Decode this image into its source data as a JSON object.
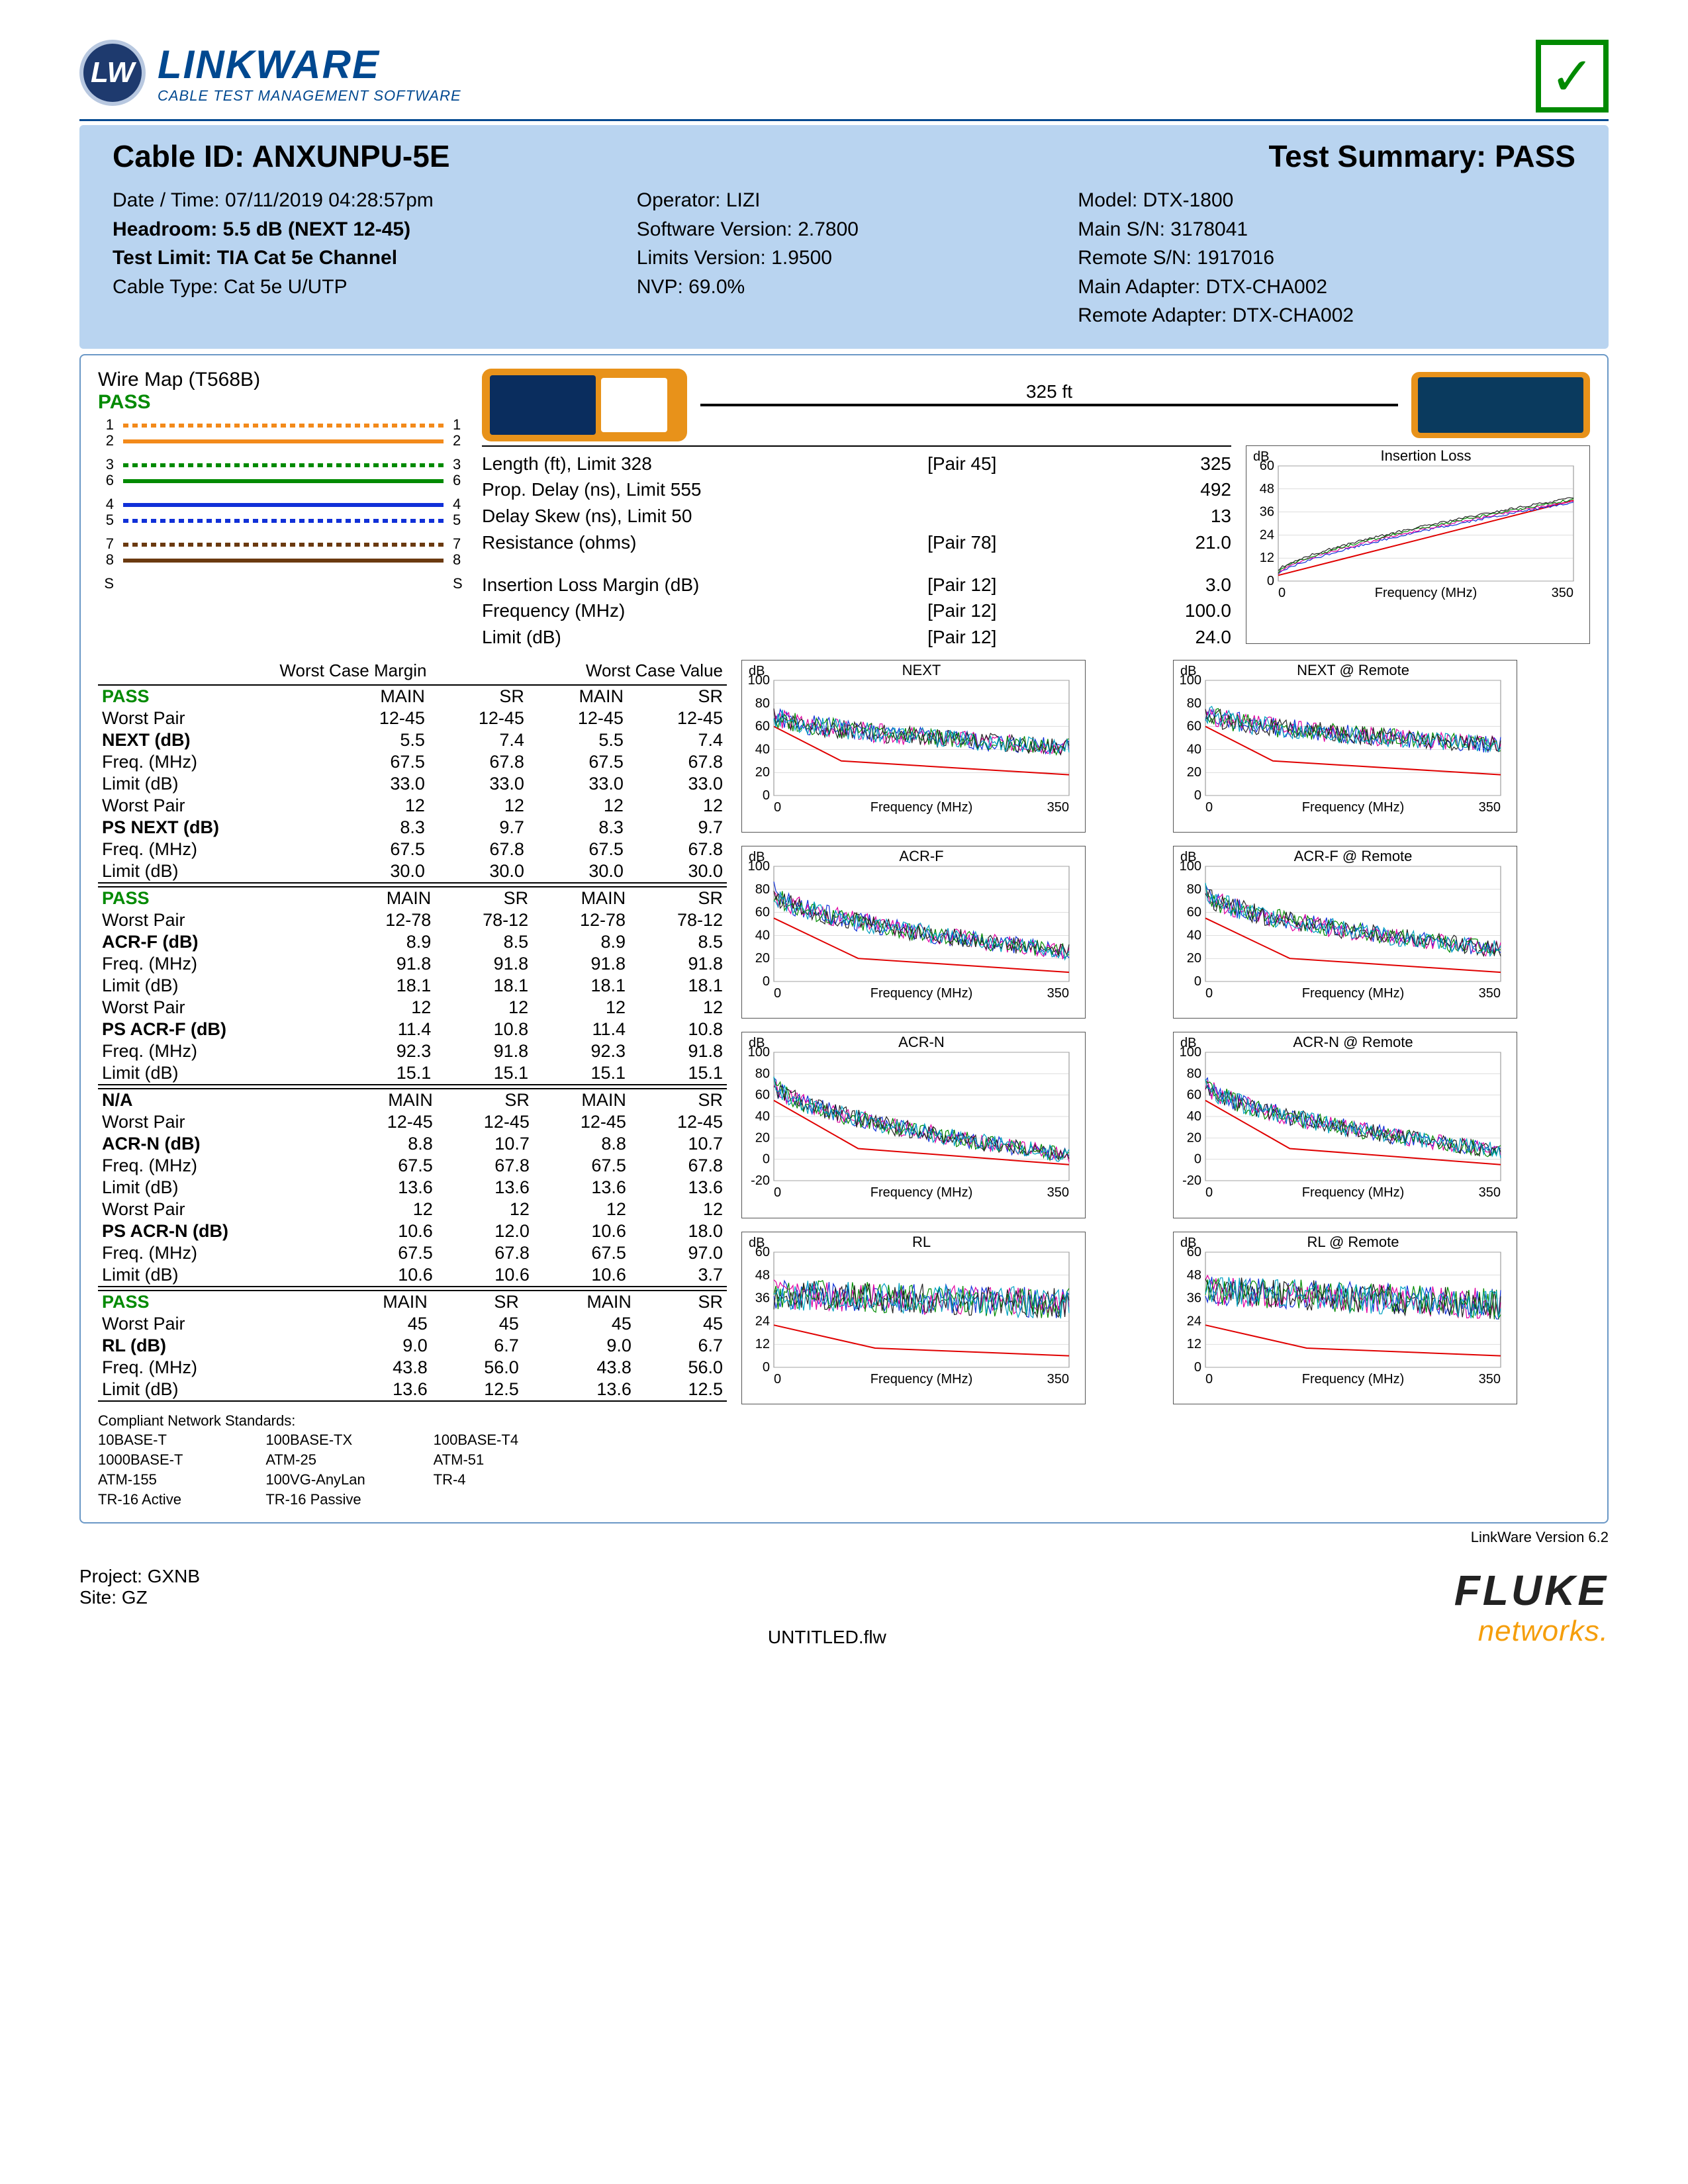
{
  "logo": {
    "badge": "LW",
    "title": "LINKWARE",
    "subtitle": "CABLE TEST MANAGEMENT SOFTWARE"
  },
  "pass_mark": "✓",
  "header": {
    "cable_id_label": "Cable ID:",
    "cable_id": "ANXUNPU-5E",
    "summary_label": "Test Summary:",
    "summary": "PASS",
    "col1": {
      "datetime": "Date / Time: 07/11/2019 04:28:57pm",
      "headroom": "Headroom: 5.5 dB (NEXT 12-45)",
      "test_limit": "Test Limit: TIA Cat 5e Channel",
      "cable_type": "Cable Type: Cat 5e U/UTP"
    },
    "col2": {
      "operator": "Operator: LIZI",
      "sw_ver": "Software Version: 2.7800",
      "lim_ver": "Limits Version: 1.9500",
      "nvp": "NVP: 69.0%"
    },
    "col3": {
      "model": "Model: DTX-1800",
      "main_sn": "Main S/N: 3178041",
      "remote_sn": "Remote S/N: 1917016",
      "main_ad": "Main Adapter: DTX-CHA002",
      "rem_ad": "Remote Adapter: DTX-CHA002"
    }
  },
  "wiremap": {
    "title": "Wire Map (T568B)",
    "status": "PASS",
    "pins_left": [
      "1",
      "2",
      "3",
      "6",
      "4",
      "5",
      "7",
      "8",
      "S"
    ],
    "pins_right": [
      "1",
      "2",
      "3",
      "6",
      "4",
      "5",
      "7",
      "8",
      "S"
    ],
    "pairs": [
      {
        "top": {
          "color": "#f38a1a",
          "dash": "8,6"
        },
        "bot": {
          "color": "#f38a1a",
          "dash": "none"
        }
      },
      {
        "top": {
          "color": "#008a00",
          "dash": "8,6"
        },
        "bot": {
          "color": "#008a00",
          "dash": "none"
        }
      },
      {
        "top": {
          "color": "#1030d8",
          "dash": "none"
        },
        "bot": {
          "color": "#1030d8",
          "dash": "8,6"
        }
      },
      {
        "top": {
          "color": "#6b3a10",
          "dash": "8,6"
        },
        "bot": {
          "color": "#6b3a10",
          "dash": "none"
        }
      }
    ]
  },
  "cable_len": "325 ft",
  "params": [
    {
      "k": "Length (ft), Limit 328",
      "pair": "[Pair 45]",
      "v": "325"
    },
    {
      "k": "Prop. Delay (ns), Limit 555",
      "pair": "",
      "v": "492"
    },
    {
      "k": "Delay Skew (ns), Limit 50",
      "pair": "",
      "v": "13"
    },
    {
      "k": "Resistance (ohms)",
      "pair": "[Pair 78]",
      "v": "21.0"
    }
  ],
  "params2": [
    {
      "k": "Insertion Loss Margin (dB)",
      "pair": "[Pair 12]",
      "v": "3.0"
    },
    {
      "k": "Frequency (MHz)",
      "pair": "[Pair 12]",
      "v": "100.0"
    },
    {
      "k": "Limit (dB)",
      "pair": "[Pair 12]",
      "v": "24.0"
    }
  ],
  "tables_top_head": {
    "wcm": "Worst Case Margin",
    "wcv": "Worst Case Value"
  },
  "col_heads": [
    "MAIN",
    "SR",
    "MAIN",
    "SR"
  ],
  "sections": [
    {
      "status": "PASS",
      "status_color": "#008a00",
      "rows": [
        [
          "Worst Pair",
          "12-45",
          "12-45",
          "12-45",
          "12-45"
        ],
        [
          "NEXT (dB)",
          "5.5",
          "7.4",
          "5.5",
          "7.4"
        ],
        [
          "Freq. (MHz)",
          "67.5",
          "67.8",
          "67.5",
          "67.8"
        ],
        [
          "Limit (dB)",
          "33.0",
          "33.0",
          "33.0",
          "33.0"
        ],
        [
          "Worst Pair",
          "12",
          "12",
          "12",
          "12"
        ],
        [
          "PS NEXT (dB)",
          "8.3",
          "9.7",
          "8.3",
          "9.7"
        ],
        [
          "Freq. (MHz)",
          "67.5",
          "67.8",
          "67.5",
          "67.8"
        ],
        [
          "Limit (dB)",
          "30.0",
          "30.0",
          "30.0",
          "30.0"
        ]
      ],
      "bold_rows": [
        1,
        5
      ]
    },
    {
      "status": "PASS",
      "status_color": "#008a00",
      "rows": [
        [
          "Worst Pair",
          "12-78",
          "78-12",
          "12-78",
          "78-12"
        ],
        [
          "ACR-F (dB)",
          "8.9",
          "8.5",
          "8.9",
          "8.5"
        ],
        [
          "Freq. (MHz)",
          "91.8",
          "91.8",
          "91.8",
          "91.8"
        ],
        [
          "Limit (dB)",
          "18.1",
          "18.1",
          "18.1",
          "18.1"
        ],
        [
          "Worst Pair",
          "12",
          "12",
          "12",
          "12"
        ],
        [
          "PS ACR-F (dB)",
          "11.4",
          "10.8",
          "11.4",
          "10.8"
        ],
        [
          "Freq. (MHz)",
          "92.3",
          "91.8",
          "92.3",
          "91.8"
        ],
        [
          "Limit (dB)",
          "15.1",
          "15.1",
          "15.1",
          "15.1"
        ]
      ],
      "bold_rows": [
        1,
        5
      ]
    },
    {
      "status": "N/A",
      "status_color": "#000",
      "rows": [
        [
          "Worst Pair",
          "12-45",
          "12-45",
          "12-45",
          "12-45"
        ],
        [
          "ACR-N (dB)",
          "8.8",
          "10.7",
          "8.8",
          "10.7"
        ],
        [
          "Freq. (MHz)",
          "67.5",
          "67.8",
          "67.5",
          "67.8"
        ],
        [
          "Limit (dB)",
          "13.6",
          "13.6",
          "13.6",
          "13.6"
        ],
        [
          "Worst Pair",
          "12",
          "12",
          "12",
          "12"
        ],
        [
          "PS ACR-N (dB)",
          "10.6",
          "12.0",
          "10.6",
          "18.0"
        ],
        [
          "Freq. (MHz)",
          "67.5",
          "67.8",
          "67.5",
          "97.0"
        ],
        [
          "Limit (dB)",
          "10.6",
          "10.6",
          "10.6",
          "3.7"
        ]
      ],
      "bold_rows": [
        1,
        5
      ]
    },
    {
      "status": "PASS",
      "status_color": "#008a00",
      "rows": [
        [
          "Worst Pair",
          "45",
          "45",
          "45",
          "45"
        ],
        [
          "RL (dB)",
          "9.0",
          "6.7",
          "9.0",
          "6.7"
        ],
        [
          "Freq. (MHz)",
          "43.8",
          "56.0",
          "43.8",
          "56.0"
        ],
        [
          "Limit (dB)",
          "13.6",
          "12.5",
          "13.6",
          "12.5"
        ]
      ],
      "bold_rows": [
        1
      ]
    }
  ],
  "compliant": {
    "title": "Compliant Network Standards:",
    "items": [
      "10BASE-T",
      "100BASE-TX",
      "100BASE-T4",
      "1000BASE-T",
      "ATM-25",
      "ATM-51",
      "ATM-155",
      "100VG-AnyLan",
      "TR-4",
      "TR-16 Active",
      "TR-16 Passive"
    ]
  },
  "charts": {
    "xlabel": "Frequency (MHz)",
    "xlim": [
      0,
      350
    ],
    "trace_colors": [
      "#1030d8",
      "#e000a0",
      "#008a00",
      "#222",
      "#00a0c0"
    ],
    "limit_color": "#e00000",
    "grid_color": "#bcbcbc",
    "insertion_loss": {
      "title": "Insertion Loss",
      "ylabel": "dB",
      "ylim": [
        0,
        60
      ],
      "yticks": [
        0,
        12,
        24,
        36,
        48,
        60
      ],
      "type": "rising",
      "limit": [
        [
          0,
          3
        ],
        [
          350,
          42
        ]
      ]
    },
    "list": [
      {
        "title": "NEXT",
        "ylabel": "dB",
        "ylim": [
          0,
          100
        ],
        "yticks": [
          0,
          20,
          40,
          60,
          80,
          100
        ],
        "type": "noisy-fall",
        "baseline": 70,
        "end": 42,
        "limit": [
          [
            0,
            60
          ],
          [
            80,
            30
          ],
          [
            350,
            18
          ]
        ]
      },
      {
        "title": "NEXT @ Remote",
        "ylabel": "dB",
        "ylim": [
          0,
          100
        ],
        "yticks": [
          0,
          20,
          40,
          60,
          80,
          100
        ],
        "type": "noisy-fall",
        "baseline": 72,
        "end": 44,
        "limit": [
          [
            0,
            60
          ],
          [
            80,
            30
          ],
          [
            350,
            18
          ]
        ]
      },
      {
        "title": "ACR-F",
        "ylabel": "dB",
        "ylim": [
          0,
          100
        ],
        "yticks": [
          0,
          20,
          40,
          60,
          80,
          100
        ],
        "type": "noisy-fall",
        "baseline": 78,
        "end": 26,
        "limit": [
          [
            0,
            55
          ],
          [
            100,
            20
          ],
          [
            350,
            8
          ]
        ]
      },
      {
        "title": "ACR-F @ Remote",
        "ylabel": "dB",
        "ylim": [
          0,
          100
        ],
        "yticks": [
          0,
          20,
          40,
          60,
          80,
          100
        ],
        "type": "noisy-fall",
        "baseline": 78,
        "end": 28,
        "limit": [
          [
            0,
            55
          ],
          [
            100,
            20
          ],
          [
            350,
            8
          ]
        ]
      },
      {
        "title": "ACR-N",
        "ylabel": "dB",
        "ylim": [
          -20,
          100
        ],
        "yticks": [
          -20,
          0,
          20,
          40,
          60,
          80,
          100
        ],
        "type": "noisy-fall",
        "baseline": 72,
        "end": 4,
        "limit": [
          [
            0,
            55
          ],
          [
            100,
            10
          ],
          [
            350,
            -5
          ]
        ]
      },
      {
        "title": "ACR-N @ Remote",
        "ylabel": "dB",
        "ylim": [
          -20,
          100
        ],
        "yticks": [
          -20,
          0,
          20,
          40,
          60,
          80,
          100
        ],
        "type": "noisy-fall",
        "baseline": 72,
        "end": 8,
        "limit": [
          [
            0,
            55
          ],
          [
            100,
            10
          ],
          [
            350,
            -5
          ]
        ]
      },
      {
        "title": "RL",
        "ylabel": "dB",
        "ylim": [
          0,
          60
        ],
        "yticks": [
          0,
          12,
          24,
          36,
          48,
          60
        ],
        "type": "noisy-flat",
        "baseline": 38,
        "end": 30,
        "limit": [
          [
            0,
            22
          ],
          [
            120,
            10
          ],
          [
            350,
            6
          ]
        ]
      },
      {
        "title": "RL @ Remote",
        "ylabel": "dB",
        "ylim": [
          0,
          60
        ],
        "yticks": [
          0,
          12,
          24,
          36,
          48,
          60
        ],
        "type": "noisy-flat",
        "baseline": 40,
        "end": 28,
        "limit": [
          [
            0,
            22
          ],
          [
            120,
            10
          ],
          [
            350,
            6
          ]
        ]
      }
    ]
  },
  "footer": {
    "project": "Project: GXNB",
    "site": "Site: GZ",
    "file": "UNTITLED.flw",
    "version": "LinkWare Version  6.2",
    "fluke": "FLUKE",
    "fluke_sub": "networks."
  }
}
